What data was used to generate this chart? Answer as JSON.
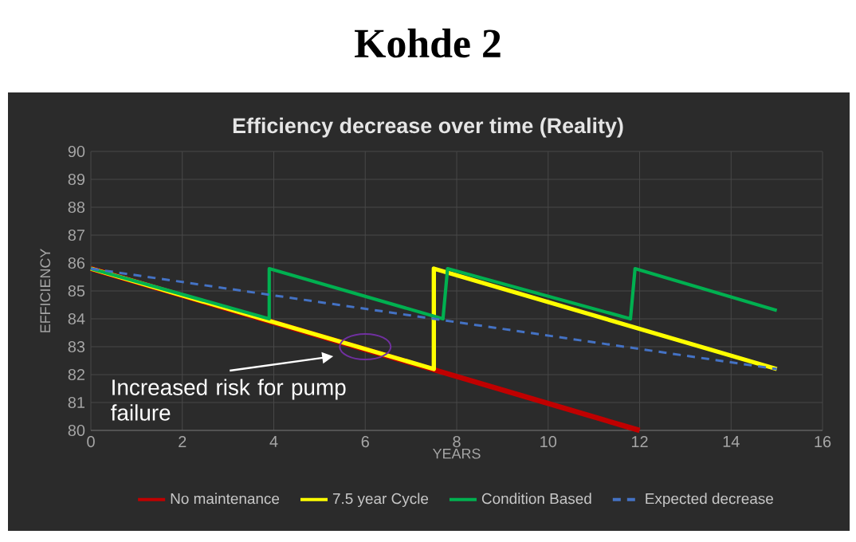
{
  "chart_data": {
    "type": "line",
    "title": "Kohde 2",
    "subtitle": "Efficiency decrease over time (Reality)",
    "xlabel": "YEARS",
    "ylabel": "EFFICIENCY",
    "xlim": [
      0,
      16
    ],
    "xticks": [
      0,
      2,
      4,
      6,
      8,
      10,
      12,
      14,
      16
    ],
    "ylim": [
      80,
      90
    ],
    "yticks": [
      80,
      81,
      82,
      83,
      84,
      85,
      86,
      87,
      88,
      89,
      90
    ],
    "grid": true,
    "legend": "bottom",
    "line_style": "solid",
    "series": [
      {
        "name": "No maintenance",
        "color": "#c00000",
        "x": [
          0,
          12
        ],
        "values": [
          85.8,
          80.0
        ]
      },
      {
        "name": "7.5 year Cycle",
        "color": "#ffff00",
        "x": [
          0,
          7.5,
          7.5,
          15
        ],
        "values": [
          85.8,
          82.2,
          85.8,
          82.2
        ]
      },
      {
        "name": "Condition Based",
        "color": "#00b050",
        "x": [
          0,
          3.9,
          3.9,
          7.7,
          7.8,
          11.8,
          11.9,
          15
        ],
        "values": [
          85.8,
          84.0,
          85.8,
          84.0,
          85.8,
          84.0,
          85.8,
          84.3
        ]
      },
      {
        "name": "Expected decrease",
        "color": "#4472c4",
        "line_style": "dashed",
        "x": [
          0,
          15
        ],
        "values": [
          85.8,
          82.2
        ]
      }
    ],
    "annotations": [
      {
        "text": "Increased risk for pump failure",
        "x": 6,
        "y": 83
      }
    ]
  }
}
